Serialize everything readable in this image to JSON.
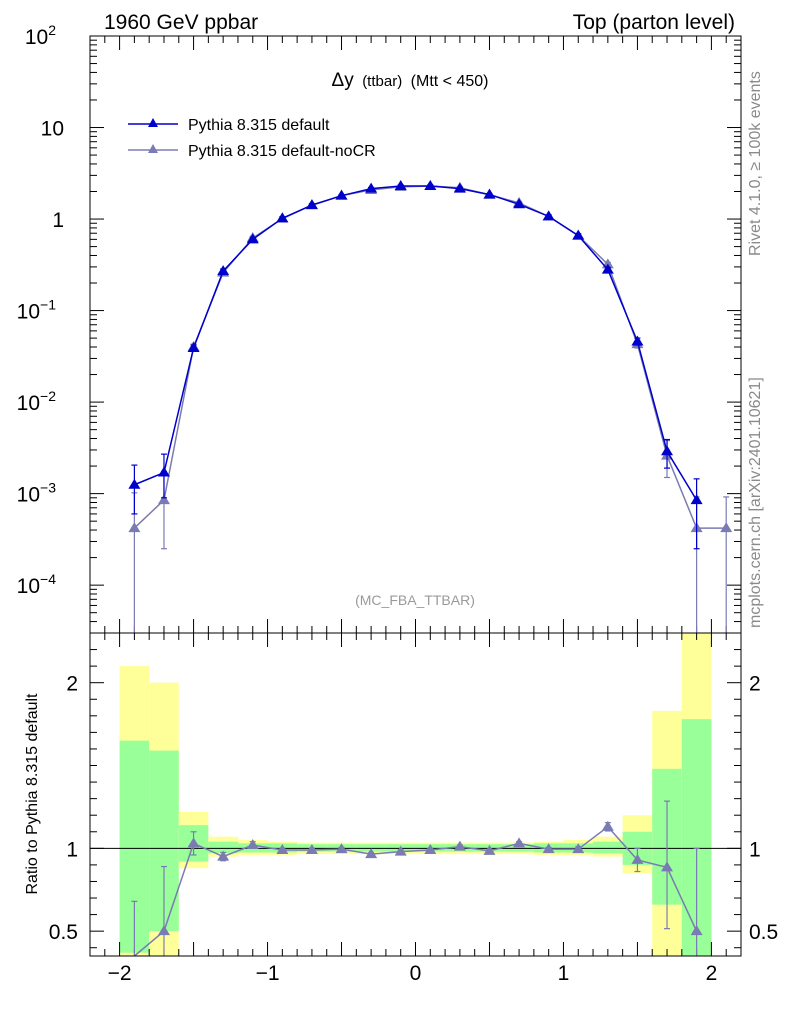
{
  "header": {
    "left": "1960 GeV ppbar",
    "right": "Top (parton level)"
  },
  "side": {
    "rivet": "Rivet 4.1.0, ≥ 100k events",
    "url": "mcplots.cern.ch [arXiv:2401.10621]"
  },
  "watermark": "(MC_FBA_TTBAR)",
  "plot_title": {
    "delta": "Δy",
    "paren": "(ttbar)",
    "cut": "(Mtt < 450)"
  },
  "ratio_ylabel": "Ratio to Pythia 8.315 default",
  "colors": {
    "default": "#0000cc",
    "nocr": "#7b7bb3",
    "band_outer": "#ffff99",
    "band_inner": "#99ff99"
  },
  "chart_data": [
    {
      "type": "line",
      "scale": "log",
      "xlim": [
        -2.2,
        2.2
      ],
      "ylim": [
        3e-05,
        100
      ],
      "x": [
        -1.9,
        -1.7,
        -1.5,
        -1.3,
        -1.1,
        -0.9,
        -0.7,
        -0.5,
        -0.3,
        -0.1,
        0.1,
        0.3,
        0.5,
        0.7,
        0.9,
        1.1,
        1.3,
        1.5,
        1.7,
        1.9,
        2.1
      ],
      "y_ticks": [
        {
          "v": 100,
          "m": "10",
          "e": "2"
        },
        {
          "v": 10,
          "m": "10",
          "e": ""
        },
        {
          "v": 1,
          "m": "1",
          "e": ""
        },
        {
          "v": 0.1,
          "m": "10",
          "e": "−1"
        },
        {
          "v": 0.01,
          "m": "10",
          "e": "−2"
        },
        {
          "v": 0.001,
          "m": "10",
          "e": "−3"
        },
        {
          "v": 0.0001,
          "m": "10",
          "e": "−4"
        }
      ],
      "series": [
        {
          "name": "Pythia 8.315 default",
          "values": [
            0.00125,
            0.0017,
            0.039,
            0.27,
            0.6,
            1.02,
            1.42,
            1.8,
            2.15,
            2.3,
            2.3,
            2.15,
            1.85,
            1.45,
            1.07,
            0.66,
            0.28,
            0.046,
            0.0029,
            0.00085,
            null
          ],
          "err_lo": [
            0.00065,
            0.0008,
            0.003,
            0.015,
            0.03,
            0.04,
            0.05,
            0.05,
            0.06,
            0.06,
            0.06,
            0.06,
            0.05,
            0.05,
            0.04,
            0.03,
            0.015,
            0.004,
            0.001,
            0.0006,
            null
          ],
          "err_hi": [
            0.0008,
            0.001,
            0.003,
            0.015,
            0.03,
            0.04,
            0.05,
            0.05,
            0.06,
            0.06,
            0.06,
            0.06,
            0.05,
            0.05,
            0.04,
            0.03,
            0.015,
            0.004,
            0.001,
            0.0006,
            null
          ]
        },
        {
          "name": "Pythia 8.315 default-noCR",
          "values": [
            0.00042,
            0.00085,
            0.04,
            0.26,
            0.62,
            1.01,
            1.42,
            1.8,
            2.08,
            2.25,
            2.3,
            2.2,
            1.85,
            1.5,
            1.07,
            0.66,
            0.32,
            0.043,
            0.0026,
            0.00042,
            0.00042
          ],
          "err_lo": [
            0.00042,
            0.0006,
            0.003,
            0.015,
            0.03,
            0.04,
            0.05,
            0.05,
            0.06,
            0.06,
            0.06,
            0.06,
            0.05,
            0.05,
            0.04,
            0.03,
            0.015,
            0.004,
            0.0011,
            0.00042,
            0.00042
          ],
          "err_hi": [
            0.0006,
            0.0009,
            0.003,
            0.015,
            0.03,
            0.04,
            0.05,
            0.05,
            0.06,
            0.06,
            0.06,
            0.06,
            0.05,
            0.05,
            0.04,
            0.03,
            0.015,
            0.004,
            0.0012,
            0.0005,
            0.0005
          ]
        }
      ]
    },
    {
      "type": "line",
      "ylim": [
        0.35,
        2.3
      ],
      "xlim": [
        -2.2,
        2.2
      ],
      "x_ticks": [
        {
          "v": -2,
          "label": "−2"
        },
        {
          "v": -1,
          "label": "−1"
        },
        {
          "v": 0,
          "label": "0"
        },
        {
          "v": 1,
          "label": "1"
        },
        {
          "v": 2,
          "label": "2"
        }
      ],
      "y_ticks": [
        {
          "v": 2,
          "label": "2"
        },
        {
          "v": 1,
          "label": "1"
        },
        {
          "v": 0.5,
          "label": "0.5"
        }
      ],
      "bands": [
        {
          "x0": -2.0,
          "x1": -1.8,
          "outer": [
            0.3,
            2.1
          ],
          "inner": [
            0.37,
            1.65
          ]
        },
        {
          "x0": -1.8,
          "x1": -1.6,
          "outer": [
            0.3,
            2.0
          ],
          "inner": [
            0.5,
            1.59
          ]
        },
        {
          "x0": -1.6,
          "x1": -1.4,
          "outer": [
            0.88,
            1.22
          ],
          "inner": [
            0.92,
            1.14
          ]
        },
        {
          "x0": -1.4,
          "x1": -1.2,
          "outer": [
            0.95,
            1.07
          ],
          "inner": [
            0.97,
            1.04
          ]
        },
        {
          "x0": -1.2,
          "x1": -1.0,
          "outer": [
            0.96,
            1.05
          ],
          "inner": [
            0.975,
            1.03
          ]
        },
        {
          "x0": -1.0,
          "x1": -0.8,
          "outer": [
            0.96,
            1.04
          ],
          "inner": [
            0.975,
            1.03
          ]
        },
        {
          "x0": -0.8,
          "x1": -0.6,
          "outer": [
            0.965,
            1.035
          ],
          "inner": [
            0.98,
            1.025
          ]
        },
        {
          "x0": -0.6,
          "x1": -0.4,
          "outer": [
            0.965,
            1.035
          ],
          "inner": [
            0.98,
            1.025
          ]
        },
        {
          "x0": -0.4,
          "x1": -0.2,
          "outer": [
            0.965,
            1.035
          ],
          "inner": [
            0.98,
            1.025
          ]
        },
        {
          "x0": -0.2,
          "x1": 0.0,
          "outer": [
            0.965,
            1.035
          ],
          "inner": [
            0.98,
            1.025
          ]
        },
        {
          "x0": 0.0,
          "x1": 0.2,
          "outer": [
            0.965,
            1.035
          ],
          "inner": [
            0.98,
            1.025
          ]
        },
        {
          "x0": 0.2,
          "x1": 0.4,
          "outer": [
            0.965,
            1.035
          ],
          "inner": [
            0.98,
            1.025
          ]
        },
        {
          "x0": 0.4,
          "x1": 0.6,
          "outer": [
            0.965,
            1.035
          ],
          "inner": [
            0.98,
            1.025
          ]
        },
        {
          "x0": 0.6,
          "x1": 0.8,
          "outer": [
            0.965,
            1.035
          ],
          "inner": [
            0.98,
            1.025
          ]
        },
        {
          "x0": 0.8,
          "x1": 1.0,
          "outer": [
            0.96,
            1.04
          ],
          "inner": [
            0.975,
            1.03
          ]
        },
        {
          "x0": 1.0,
          "x1": 1.2,
          "outer": [
            0.96,
            1.05
          ],
          "inner": [
            0.975,
            1.03
          ]
        },
        {
          "x0": 1.2,
          "x1": 1.4,
          "outer": [
            0.95,
            1.07
          ],
          "inner": [
            0.97,
            1.04
          ]
        },
        {
          "x0": 1.4,
          "x1": 1.6,
          "outer": [
            0.85,
            1.2
          ],
          "inner": [
            0.9,
            1.1
          ]
        },
        {
          "x0": 1.6,
          "x1": 1.8,
          "outer": [
            0.3,
            1.83
          ],
          "inner": [
            0.66,
            1.48
          ]
        },
        {
          "x0": 1.8,
          "x1": 2.0,
          "outer": [
            0.3,
            2.3
          ],
          "inner": [
            0.3,
            1.78
          ]
        }
      ],
      "series": [
        {
          "name": "Pythia 8.315 default-noCR / Pythia 8.315 default",
          "x": [
            -1.9,
            -1.7,
            -1.5,
            -1.3,
            -1.1,
            -0.9,
            -0.7,
            -0.5,
            -0.3,
            -0.1,
            0.1,
            0.3,
            0.5,
            0.7,
            0.9,
            1.1,
            1.3,
            1.5,
            1.7,
            1.9
          ],
          "values": [
            0.33,
            0.5,
            1.03,
            0.95,
            1.02,
            0.99,
            0.99,
            0.995,
            0.965,
            0.98,
            0.99,
            1.01,
            0.985,
            1.03,
            0.995,
            0.995,
            1.13,
            0.93,
            0.885,
            0.5
          ],
          "err_lo": [
            0.33,
            0.35,
            0.07,
            0.025,
            0.02,
            0.01,
            0.01,
            0.01,
            0.01,
            0.01,
            0.01,
            0.01,
            0.01,
            0.01,
            0.01,
            0.015,
            0.025,
            0.07,
            0.37,
            0.5
          ],
          "err_hi": [
            0.35,
            0.39,
            0.07,
            0.025,
            0.02,
            0.01,
            0.01,
            0.01,
            0.01,
            0.01,
            0.01,
            0.01,
            0.01,
            0.01,
            0.01,
            0.015,
            0.025,
            0.07,
            0.4,
            0.5
          ]
        }
      ]
    }
  ]
}
